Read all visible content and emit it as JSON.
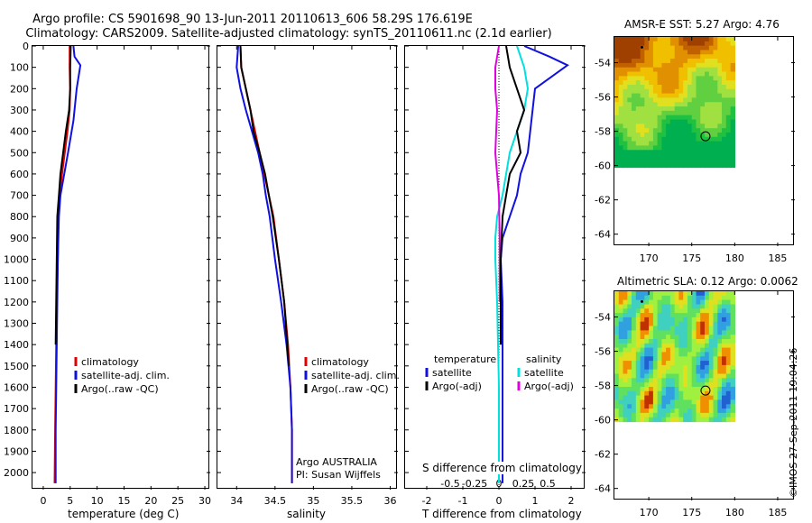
{
  "header": {
    "title_line1": "Argo profile: CS 5901698_90 13-Jun-2011 20110613_606 58.29S 176.619E",
    "title_line2": "Climatology: CARS2009. Satellite-adjusted climatology: synTS_20110611.nc (2.1d earlier)"
  },
  "colors": {
    "climatology": "#e00000",
    "satellite": "#1010e0",
    "argo": "#000000",
    "sat_salinity": "#00e0e0",
    "argo_salinity": "#e000e0"
  },
  "chart_data": [
    {
      "type": "line",
      "xlabel": "temperature (deg C)",
      "ylabel": "",
      "xlim": [
        -2,
        31
      ],
      "ylim": [
        2080,
        0
      ],
      "xticks": [
        0,
        5,
        10,
        15,
        20,
        25,
        30
      ],
      "yticks": [
        0,
        100,
        200,
        300,
        400,
        500,
        600,
        700,
        800,
        900,
        1000,
        1100,
        1200,
        1300,
        1400,
        1500,
        1600,
        1700,
        1800,
        1900,
        2000
      ],
      "legend": [
        "climatology",
        "satellite-adj. clim.",
        "Argo(..raw -QC)"
      ],
      "series": [
        {
          "name": "climatology",
          "x": [
            4.9,
            4.9,
            5.0,
            4.9,
            4.5,
            4.0,
            3.5,
            3.0,
            2.8,
            2.7,
            2.5,
            2.4,
            2.3,
            2.2,
            2.1
          ],
          "y": [
            0,
            100,
            200,
            300,
            400,
            500,
            600,
            700,
            800,
            1000,
            1200,
            1400,
            1600,
            1800,
            2050
          ]
        },
        {
          "name": "satellite-adj. clim.",
          "x": [
            5.6,
            5.8,
            6.9,
            6.2,
            5.6,
            4.6,
            3.9,
            3.2,
            2.9,
            2.7,
            2.6,
            2.5,
            2.4,
            2.3,
            2.3
          ],
          "y": [
            0,
            50,
            90,
            200,
            350,
            500,
            600,
            700,
            800,
            1000,
            1200,
            1400,
            1600,
            1800,
            2050
          ]
        },
        {
          "name": "Argo(..raw -QC)",
          "x": [
            5.1,
            5.0,
            5.0,
            4.8,
            4.2,
            3.7,
            3.2,
            2.9,
            2.6,
            2.5,
            2.4,
            2.3
          ],
          "y": [
            0,
            100,
            200,
            300,
            400,
            500,
            600,
            700,
            800,
            1000,
            1200,
            1400
          ]
        }
      ]
    },
    {
      "type": "line",
      "xlabel": "salinity",
      "xlim": [
        33.75,
        36.1
      ],
      "ylim": [
        2080,
        0
      ],
      "xticks": [
        34,
        34.5,
        35,
        35.5,
        36
      ],
      "legend": [
        "climatology",
        "satellite-adj. clim.",
        "Argo(..raw -QC)"
      ],
      "annotation": [
        "Argo AUSTRALIA",
        "PI: Susan Wijffels"
      ],
      "series": [
        {
          "name": "climatology",
          "x": [
            34.05,
            34.06,
            34.12,
            34.18,
            34.24,
            34.3,
            34.36,
            34.42,
            34.48,
            34.55,
            34.62,
            34.67,
            34.7,
            34.72,
            34.72
          ],
          "y": [
            0,
            100,
            200,
            300,
            400,
            500,
            600,
            700,
            800,
            1000,
            1200,
            1400,
            1600,
            1800,
            2050
          ]
        },
        {
          "name": "satellite-adj. clim.",
          "x": [
            34.02,
            34.0,
            34.05,
            34.12,
            34.2,
            34.28,
            34.34,
            34.38,
            34.43,
            34.5,
            34.58,
            34.65,
            34.7,
            34.72,
            34.72
          ],
          "y": [
            0,
            100,
            200,
            300,
            400,
            500,
            600,
            700,
            800,
            1000,
            1200,
            1400,
            1600,
            1800,
            2050
          ]
        },
        {
          "name": "Argo(..raw -QC)",
          "x": [
            34.05,
            34.06,
            34.12,
            34.18,
            34.22,
            34.3,
            34.37,
            34.42,
            34.47,
            34.55,
            34.62,
            34.66,
            34.68
          ],
          "y": [
            0,
            100,
            200,
            300,
            400,
            500,
            600,
            700,
            800,
            1000,
            1200,
            1400,
            1500
          ]
        }
      ]
    },
    {
      "type": "line",
      "xlabel": "T difference from climatology",
      "xlabel2": "S difference from climatology",
      "xlim": [
        -2.6,
        2.4
      ],
      "ylim": [
        2080,
        0
      ],
      "xticks": [
        -2,
        -1,
        0,
        1,
        2
      ],
      "xticks_s": [
        "-0.5",
        "-0.25",
        "0",
        "0.25",
        "0.5"
      ],
      "legend_t": [
        "temperature",
        "satellite",
        "Argo(-adj)"
      ],
      "legend_s": [
        "salinity",
        "satellite",
        "Argo(-adj)"
      ],
      "series": [
        {
          "name": "T satellite",
          "x": [
            0.7,
            1.4,
            1.9,
            1.0,
            0.8,
            0.6,
            0.5,
            0.3,
            0.1,
            0.05,
            0.1,
            0.1,
            0.1
          ],
          "y": [
            0,
            50,
            90,
            200,
            500,
            600,
            700,
            800,
            900,
            1000,
            1200,
            1600,
            2050
          ]
        },
        {
          "name": "T Argo(-adj)",
          "x": [
            0.2,
            0.3,
            0.5,
            0.7,
            0.5,
            0.6,
            0.3,
            0.2,
            0.1,
            0.05,
            0.05,
            0.05
          ],
          "y": [
            0,
            100,
            200,
            300,
            400,
            500,
            600,
            700,
            800,
            1000,
            1200,
            1400
          ]
        },
        {
          "name": "S satellite",
          "x": [
            0.5,
            0.7,
            0.8,
            0.7,
            0.3,
            0.1,
            -0.05,
            -0.1,
            -0.1,
            -0.05,
            0.0,
            0.0
          ],
          "y": [
            0,
            100,
            200,
            300,
            500,
            700,
            800,
            900,
            1000,
            1200,
            1600,
            2050
          ]
        },
        {
          "name": "S Argo(-adj)",
          "x": [
            0.0,
            -0.1,
            -0.1,
            -0.05,
            -0.1,
            0.0,
            0.02,
            0.02
          ],
          "y": [
            0,
            100,
            200,
            300,
            500,
            700,
            900,
            1200
          ]
        }
      ]
    },
    {
      "type": "heatmap",
      "title": "AMSR-E SST: 5.27 Argo: 4.76",
      "xlim": [
        166,
        187
      ],
      "ylim": [
        -64.7,
        -52.5
      ],
      "xticks": [
        170,
        175,
        180,
        185
      ],
      "yticks": [
        -54,
        -56,
        -58,
        -60,
        -62,
        -64
      ],
      "marker": {
        "x": 176.6,
        "y": -58.29
      }
    },
    {
      "type": "heatmap",
      "title": "Altimetric SLA: 0.12 Argo: 0.0062",
      "xlim": [
        166,
        187
      ],
      "ylim": [
        -64.7,
        -52.5
      ],
      "xticks": [
        170,
        175,
        180,
        185
      ],
      "yticks": [
        -54,
        -56,
        -58,
        -60,
        -62,
        -64
      ],
      "marker": {
        "x": 176.6,
        "y": -58.29
      }
    }
  ],
  "footer": {
    "timestamp": "©IMOS 27-Sep-2011 19:04:26"
  }
}
